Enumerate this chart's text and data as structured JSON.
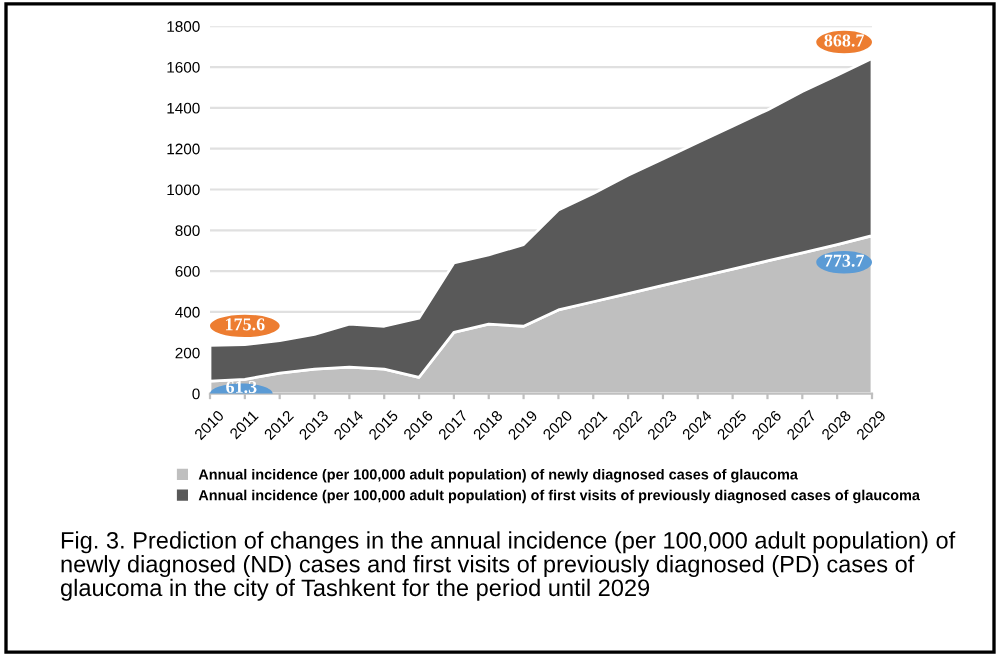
{
  "chart_data": {
    "type": "area",
    "stacked": true,
    "categories": [
      "2010",
      "2011",
      "2012",
      "2013",
      "2014",
      "2015",
      "2016",
      "2017",
      "2018",
      "2019",
      "2020",
      "2021",
      "2022",
      "2023",
      "2024",
      "2025",
      "2026",
      "2027",
      "2028",
      "2029"
    ],
    "series": [
      {
        "name": "Annual incidence (per 100,000 adult population) of newly diagnosed cases of glaucoma",
        "color": "#bfbfbf",
        "values": [
          61.3,
          70,
          100,
          120,
          130,
          120,
          80,
          300,
          340,
          330,
          410,
          450,
          490,
          530,
          570,
          610,
          650,
          690,
          730,
          773.7
        ],
        "value_labels": [
          "61.3",
          null,
          null,
          null,
          null,
          null,
          null,
          null,
          null,
          null,
          null,
          null,
          null,
          null,
          null,
          null,
          null,
          null,
          null,
          "773.7"
        ]
      },
      {
        "name": "Annual incidence (per 100,000 adult population) of first visits of previously diagnosed cases of glaucoma",
        "color": "#595959",
        "values": [
          175.6,
          170,
          160,
          170,
          210,
          210,
          290,
          340,
          340,
          400,
          490,
          530,
          580,
          620,
          660,
          700,
          740,
          790,
          830,
          868.7
        ],
        "value_labels": [
          "175.6",
          null,
          null,
          null,
          null,
          null,
          null,
          null,
          null,
          null,
          null,
          null,
          null,
          null,
          null,
          null,
          null,
          null,
          null,
          "868.7"
        ]
      }
    ],
    "ylim": [
      0,
      1800
    ],
    "yticks": [
      0,
      200,
      400,
      600,
      800,
      1000,
      1200,
      1400,
      1600,
      1800
    ],
    "grid": "y",
    "legend": "bottom",
    "annotations": [
      "Fig. 3. Prediction of changes in the annual incidence (per 100,000 adult population) of newly diagnosed (ND) cases and first visits of previously diagnosed (PD) cases of glaucoma in the city of Tashkent for the period until 2029"
    ]
  }
}
